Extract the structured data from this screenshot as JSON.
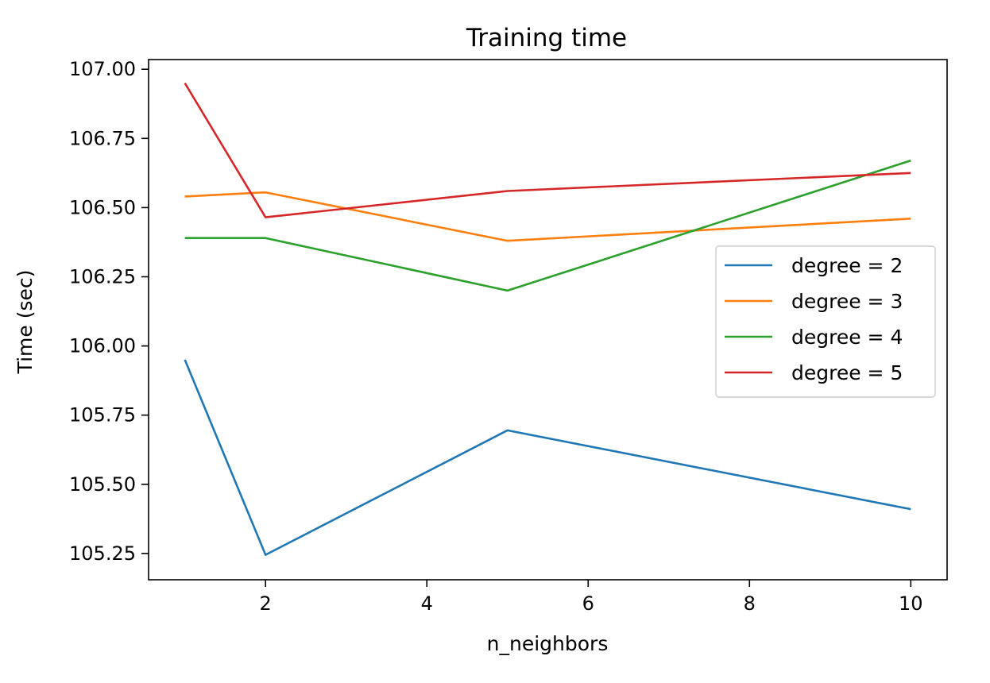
{
  "chart_data": {
    "type": "line",
    "title": "Training time",
    "xlabel": "n_neighbors",
    "ylabel": "Time (sec)",
    "x": [
      1,
      2,
      5,
      10
    ],
    "xlim": [
      0.55,
      10.45
    ],
    "ylim": [
      105.155,
      107.035
    ],
    "xticks": [
      2,
      4,
      6,
      8,
      10
    ],
    "xtick_labels": [
      "2",
      "4",
      "6",
      "8",
      "10"
    ],
    "yticks": [
      105.25,
      105.5,
      105.75,
      106.0,
      106.25,
      106.5,
      106.75,
      107.0
    ],
    "ytick_labels": [
      "105.25",
      "105.50",
      "105.75",
      "106.00",
      "106.25",
      "106.50",
      "106.75",
      "107.00"
    ],
    "grid": false,
    "legend_position": "center-right",
    "series": [
      {
        "name": "degree = 2",
        "color": "#1f77b4",
        "values": [
          105.95,
          105.245,
          105.695,
          105.41
        ]
      },
      {
        "name": "degree = 3",
        "color": "#ff7f0e",
        "values": [
          106.54,
          106.555,
          106.38,
          106.46
        ]
      },
      {
        "name": "degree = 4",
        "color": "#2ca02c",
        "values": [
          106.39,
          106.39,
          106.2,
          106.67
        ]
      },
      {
        "name": "degree = 5",
        "color": "#d62728",
        "values": [
          106.95,
          106.465,
          106.56,
          106.625
        ]
      }
    ]
  }
}
